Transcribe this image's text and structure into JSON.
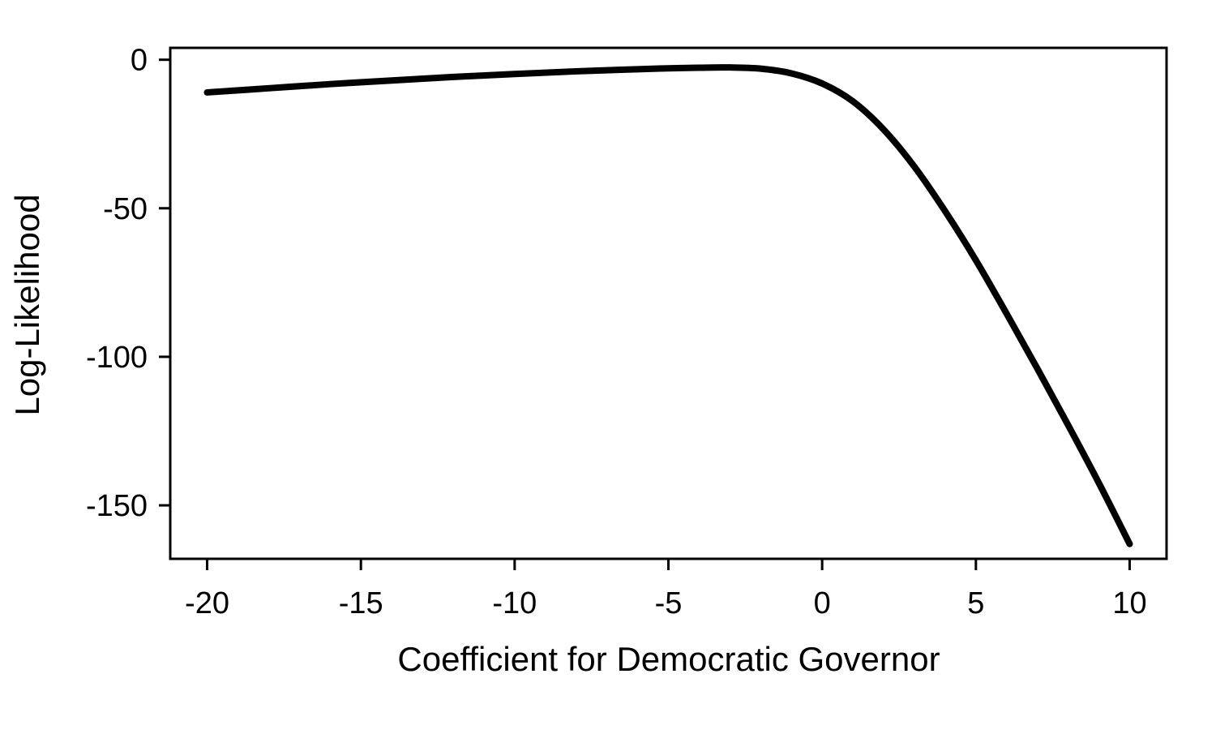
{
  "chart_data": {
    "type": "line",
    "title": "",
    "xlabel": "Coefficient for Democratic Governor",
    "ylabel": "Log-Likelihood",
    "xlim": [
      -21.2,
      11.2
    ],
    "ylim": [
      -168,
      4
    ],
    "xticks": [
      -20,
      -15,
      -10,
      -5,
      0,
      5,
      10
    ],
    "xtick_labels": [
      "-20",
      "-15",
      "-10",
      "-5",
      "0",
      "5",
      "10"
    ],
    "yticks": [
      0,
      -50,
      -100,
      -150
    ],
    "ytick_labels": [
      "0",
      "-50",
      "-100",
      "-150"
    ],
    "grid": false,
    "legend": "none",
    "line_color": "#000000",
    "series": [
      {
        "x": [
          -20,
          -18,
          -16,
          -14,
          -12,
          -10,
          -8,
          -6,
          -5,
          -4,
          -3,
          -2,
          -1,
          0,
          1,
          2,
          3,
          4,
          5,
          6,
          7,
          8,
          9,
          10
        ],
        "y": [
          -11,
          -9.6,
          -8.2,
          -7.0,
          -5.8,
          -4.8,
          -3.9,
          -3.2,
          -2.9,
          -2.7,
          -2.6,
          -3.0,
          -4.6,
          -8.0,
          -14.0,
          -23.5,
          -36.0,
          -51.0,
          -67.5,
          -85.5,
          -104.0,
          -123.0,
          -142.5,
          -163.0
        ]
      }
    ]
  }
}
